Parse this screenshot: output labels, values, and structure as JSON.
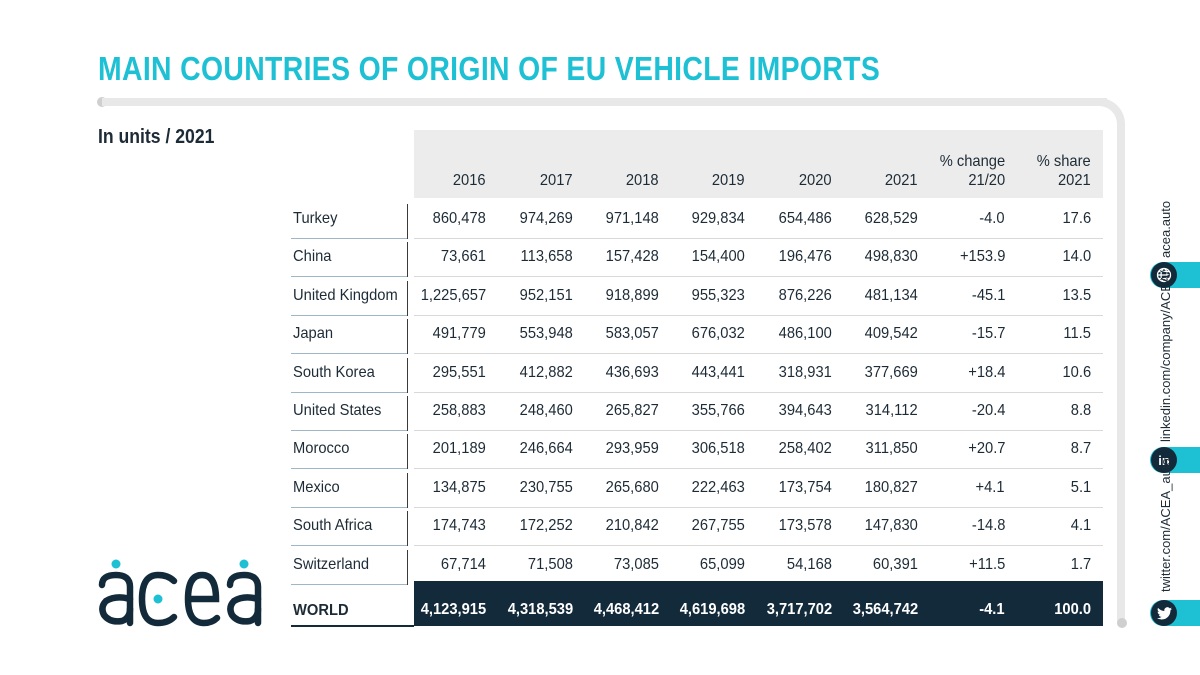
{
  "title": "MAIN COUNTRIES OF ORIGIN OF EU VEHICLE IMPORTS",
  "subtitle": "In units / 2021",
  "table": {
    "headers": [
      "2016",
      "2017",
      "2018",
      "2019",
      "2020",
      "2021",
      "% change\n21/20",
      "% share\n2021"
    ],
    "rows": [
      {
        "country": "Turkey",
        "values": [
          "860,478",
          "974,269",
          "971,148",
          "929,834",
          "654,486",
          "628,529",
          "-4.0",
          "17.6"
        ]
      },
      {
        "country": "China",
        "values": [
          "73,661",
          "113,658",
          "157,428",
          "154,400",
          "196,476",
          "498,830",
          "+153.9",
          "14.0"
        ]
      },
      {
        "country": "United Kingdom",
        "values": [
          "1,225,657",
          "952,151",
          "918,899",
          "955,323",
          "876,226",
          "481,134",
          "-45.1",
          "13.5"
        ]
      },
      {
        "country": "Japan",
        "values": [
          "491,779",
          "553,948",
          "583,057",
          "676,032",
          "486,100",
          "409,542",
          "-15.7",
          "11.5"
        ]
      },
      {
        "country": "South Korea",
        "values": [
          "295,551",
          "412,882",
          "436,693",
          "443,441",
          "318,931",
          "377,669",
          "+18.4",
          "10.6"
        ]
      },
      {
        "country": "United States",
        "values": [
          "258,883",
          "248,460",
          "265,827",
          "355,766",
          "394,643",
          "314,112",
          "-20.4",
          "8.8"
        ]
      },
      {
        "country": "Morocco",
        "values": [
          "201,189",
          "246,664",
          "293,959",
          "306,518",
          "258,402",
          "311,850",
          "+20.7",
          "8.7"
        ]
      },
      {
        "country": "Mexico",
        "values": [
          "134,875",
          "230,755",
          "265,680",
          "222,463",
          "173,754",
          "180,827",
          "+4.1",
          "5.1"
        ]
      },
      {
        "country": "South Africa",
        "values": [
          "174,743",
          "172,252",
          "210,842",
          "267,755",
          "173,578",
          "147,830",
          "-14.8",
          "4.1"
        ]
      },
      {
        "country": "Switzerland",
        "values": [
          "67,714",
          "71,508",
          "73,085",
          "65,099",
          "54,168",
          "60,391",
          "+11.5",
          "1.7"
        ]
      }
    ],
    "total": {
      "country": "WORLD",
      "values": [
        "4,123,915",
        "4,318,539",
        "4,468,412",
        "4,619,698",
        "3,717,702",
        "3,564,742",
        "-4.1",
        "100.0"
      ]
    }
  },
  "logo_text": "acea",
  "social": [
    {
      "text": "acea.auto",
      "icon": "globe-icon"
    },
    {
      "text": "linkedin.com/company/ACEA/",
      "icon": "linkedin-icon"
    },
    {
      "text": "twitter.com/ACEA_auto",
      "icon": "twitter-icon"
    }
  ],
  "colors": {
    "accent": "#1ec0d4",
    "dark": "#132a3b",
    "header_bg": "#ececec"
  }
}
